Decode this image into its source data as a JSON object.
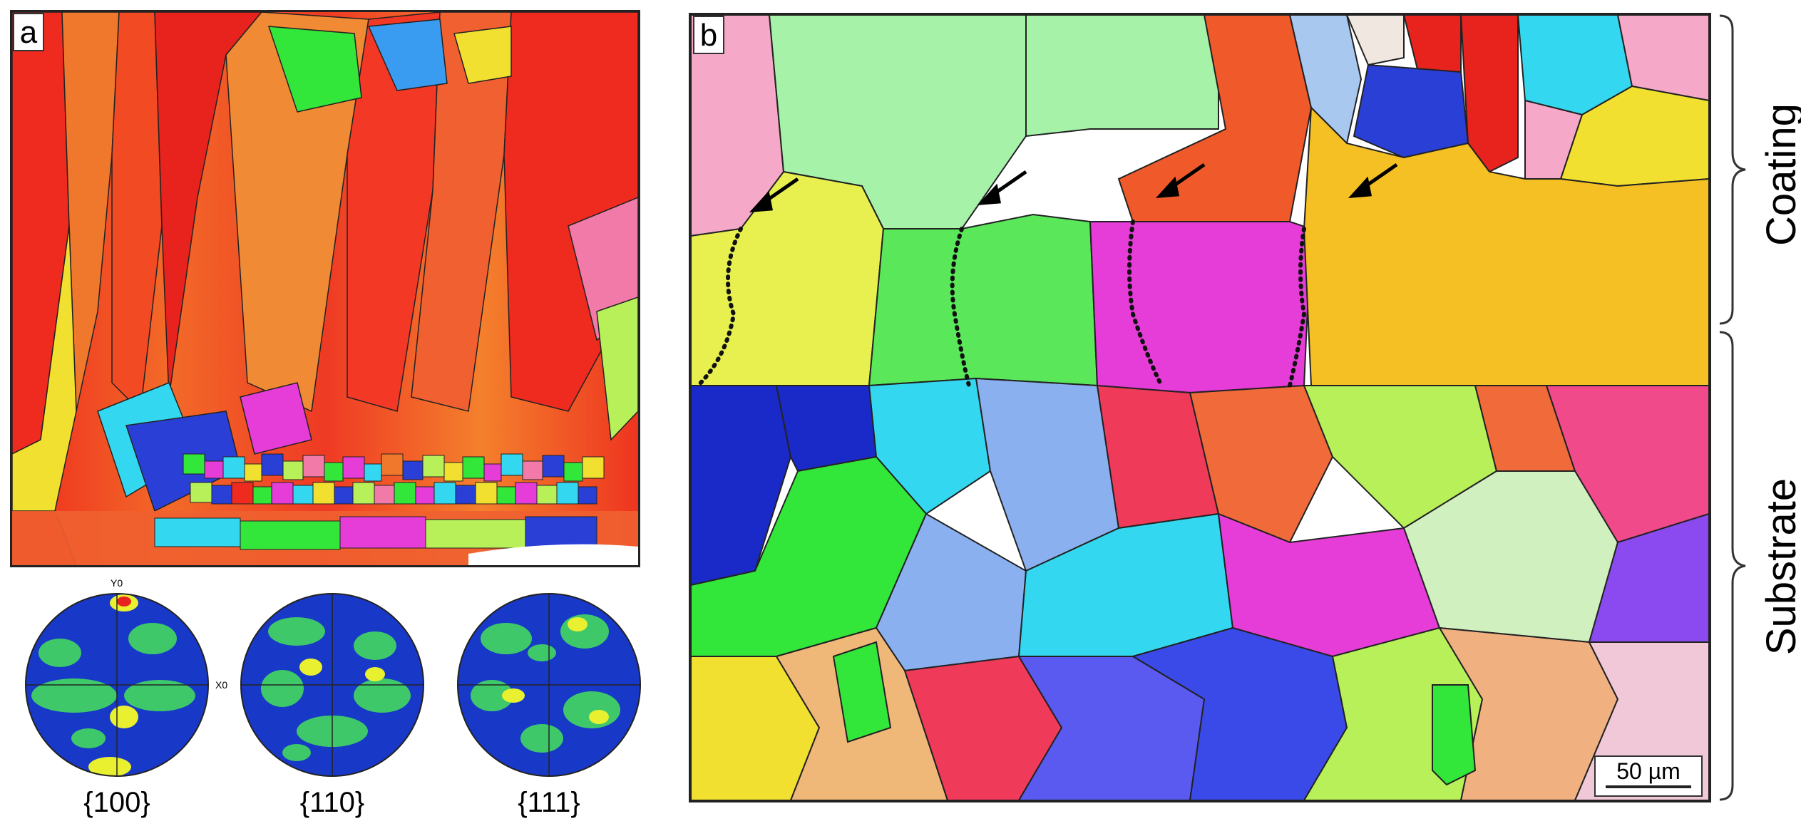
{
  "panel_a": {
    "letter": "a",
    "pole_figures": [
      {
        "label": "{100}",
        "axis_y": "Y0",
        "axis_x": "X0"
      },
      {
        "label": "{110}"
      },
      {
        "label": "{111}"
      }
    ]
  },
  "panel_b": {
    "letter": "b",
    "scalebar_label": "50 µm",
    "region_labels": {
      "coating": "Coating",
      "substrate": "Substrate"
    },
    "arrow_count": 4
  },
  "colors": {
    "red": "#ef2a1e",
    "orange": "#f47a2a",
    "green": "#33e63a",
    "lime": "#b8f05a",
    "cyan": "#33d8f0",
    "blue": "#2a3fd6",
    "magenta": "#e63cd8",
    "yellow": "#f2e030",
    "pink": "#f27aa8",
    "pf_blue": "#1838c8",
    "pf_green": "#3ec86a",
    "pf_yellow": "#e8f030"
  }
}
